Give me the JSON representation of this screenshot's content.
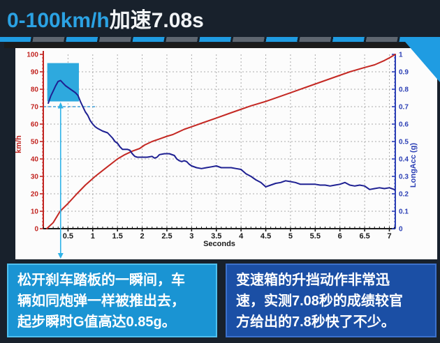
{
  "header": {
    "title_accent": "0-100km/h",
    "title_rest": "加速7.08s"
  },
  "chart_data": {
    "type": "line",
    "xlabel": "Seconds",
    "grid": true,
    "x_axis": {
      "min": 0,
      "max": 7.12,
      "minor_step": 0.1,
      "major_ticks": [
        0.5,
        1,
        1.5,
        2,
        2.5,
        3,
        3.5,
        4,
        4.5,
        5,
        5.5,
        6,
        6.5,
        7
      ],
      "major_labels": [
        "0.5",
        "1",
        "1.5",
        "2",
        "2.5",
        "3",
        "3.5",
        "4",
        "4.5",
        "5",
        "5.5",
        "6",
        "6.5",
        "7"
      ],
      "color": "#1a1a1a"
    },
    "left_axis": {
      "label": "km/h",
      "min": 0,
      "max": 100,
      "major_step": 10,
      "minor_step": 2,
      "tick_labels": [
        "0",
        "10",
        "20",
        "30",
        "40",
        "50",
        "60",
        "70",
        "80",
        "90",
        "100"
      ],
      "color": "#c22521"
    },
    "right_axis": {
      "label": "LongAcc (g)",
      "min": 0,
      "max": 1,
      "major_step": 0.1,
      "minor_step": 0.02,
      "tick_labels": [
        "0",
        "0.1",
        "0.2",
        "0.3",
        "0.4",
        "0.5",
        "0.6",
        "0.7",
        "0.8",
        "0.9",
        "1"
      ],
      "color": "#2b3fb5"
    },
    "series": [
      {
        "name": "speed_kmh",
        "axis": "left",
        "color": "#c42823",
        "points": [
          [
            0.07,
            0
          ],
          [
            0.2,
            3.5
          ],
          [
            0.34,
            10
          ],
          [
            0.5,
            14.5
          ],
          [
            0.68,
            20
          ],
          [
            0.85,
            25
          ],
          [
            1.05,
            30
          ],
          [
            1.25,
            34.5
          ],
          [
            1.5,
            40
          ],
          [
            1.65,
            42.5
          ],
          [
            1.8,
            44.5
          ],
          [
            1.95,
            46
          ],
          [
            2.05,
            48
          ],
          [
            2.2,
            50
          ],
          [
            2.35,
            51.5
          ],
          [
            2.5,
            53
          ],
          [
            2.62,
            54
          ],
          [
            2.85,
            57
          ],
          [
            3.0,
            58.5
          ],
          [
            3.25,
            61
          ],
          [
            3.5,
            63.5
          ],
          [
            3.75,
            66
          ],
          [
            3.95,
            68
          ],
          [
            4.2,
            70.5
          ],
          [
            4.5,
            73
          ],
          [
            4.75,
            75.5
          ],
          [
            5.05,
            78.5
          ],
          [
            5.3,
            81
          ],
          [
            5.6,
            84
          ],
          [
            5.9,
            87
          ],
          [
            6.2,
            90
          ],
          [
            6.5,
            92.5
          ],
          [
            6.7,
            94
          ],
          [
            6.9,
            96.5
          ],
          [
            7.0,
            98
          ],
          [
            7.12,
            100
          ]
        ]
      },
      {
        "name": "long_acc_g",
        "axis": "right",
        "color": "#1e2092",
        "points": [
          [
            0.1,
            0.72
          ],
          [
            0.15,
            0.76
          ],
          [
            0.2,
            0.79
          ],
          [
            0.25,
            0.82
          ],
          [
            0.3,
            0.845
          ],
          [
            0.35,
            0.85
          ],
          [
            0.4,
            0.835
          ],
          [
            0.45,
            0.82
          ],
          [
            0.5,
            0.81
          ],
          [
            0.55,
            0.8
          ],
          [
            0.6,
            0.79
          ],
          [
            0.65,
            0.78
          ],
          [
            0.7,
            0.765
          ],
          [
            0.75,
            0.73
          ],
          [
            0.8,
            0.7
          ],
          [
            0.85,
            0.67
          ],
          [
            0.9,
            0.65
          ],
          [
            0.95,
            0.62
          ],
          [
            1.0,
            0.6
          ],
          [
            1.05,
            0.585
          ],
          [
            1.1,
            0.575
          ],
          [
            1.2,
            0.56
          ],
          [
            1.3,
            0.55
          ],
          [
            1.4,
            0.52
          ],
          [
            1.45,
            0.5
          ],
          [
            1.5,
            0.49
          ],
          [
            1.55,
            0.47
          ],
          [
            1.6,
            0.455
          ],
          [
            1.7,
            0.455
          ],
          [
            1.75,
            0.45
          ],
          [
            1.8,
            0.43
          ],
          [
            1.85,
            0.415
          ],
          [
            1.9,
            0.41
          ],
          [
            2.0,
            0.41
          ],
          [
            2.1,
            0.41
          ],
          [
            2.2,
            0.415
          ],
          [
            2.25,
            0.405
          ],
          [
            2.3,
            0.41
          ],
          [
            2.35,
            0.425
          ],
          [
            2.45,
            0.43
          ],
          [
            2.55,
            0.43
          ],
          [
            2.65,
            0.42
          ],
          [
            2.7,
            0.4
          ],
          [
            2.75,
            0.39
          ],
          [
            2.8,
            0.385
          ],
          [
            2.85,
            0.39
          ],
          [
            2.9,
            0.385
          ],
          [
            2.95,
            0.37
          ],
          [
            3.0,
            0.36
          ],
          [
            3.1,
            0.35
          ],
          [
            3.2,
            0.345
          ],
          [
            3.3,
            0.35
          ],
          [
            3.4,
            0.355
          ],
          [
            3.5,
            0.36
          ],
          [
            3.6,
            0.35
          ],
          [
            3.7,
            0.35
          ],
          [
            3.8,
            0.35
          ],
          [
            3.9,
            0.345
          ],
          [
            4.0,
            0.34
          ],
          [
            4.1,
            0.315
          ],
          [
            4.2,
            0.3
          ],
          [
            4.3,
            0.28
          ],
          [
            4.4,
            0.265
          ],
          [
            4.5,
            0.24
          ],
          [
            4.6,
            0.25
          ],
          [
            4.7,
            0.26
          ],
          [
            4.8,
            0.265
          ],
          [
            4.9,
            0.275
          ],
          [
            5.0,
            0.27
          ],
          [
            5.1,
            0.265
          ],
          [
            5.2,
            0.255
          ],
          [
            5.35,
            0.255
          ],
          [
            5.5,
            0.255
          ],
          [
            5.6,
            0.25
          ],
          [
            5.7,
            0.25
          ],
          [
            5.8,
            0.245
          ],
          [
            5.9,
            0.25
          ],
          [
            6.0,
            0.255
          ],
          [
            6.1,
            0.265
          ],
          [
            6.2,
            0.25
          ],
          [
            6.3,
            0.245
          ],
          [
            6.4,
            0.25
          ],
          [
            6.5,
            0.245
          ],
          [
            6.6,
            0.225
          ],
          [
            6.7,
            0.23
          ],
          [
            6.8,
            0.235
          ],
          [
            6.9,
            0.23
          ],
          [
            7.0,
            0.235
          ],
          [
            7.1,
            0.225
          ]
        ]
      }
    ],
    "annotations": {
      "highlight_box": {
        "t_start": 0.08,
        "t_end": 0.72,
        "g_bottom": 0.73,
        "g_top": 0.95,
        "color": "#2ea9de"
      },
      "arrow": {
        "t": 0.35,
        "color": "#2fb3e8"
      },
      "ref_line": {
        "kmh": 70,
        "t_start": 0,
        "t_end": 1.05,
        "color": "#3f9fd8"
      },
      "peak_g_label": "0.85g"
    }
  },
  "notes": {
    "left_box": {
      "bg": "#1a94d3",
      "border": "#4fc0ef",
      "lines": [
        "松开刹车踏板的一瞬间，车",
        "辆如同炮弹一样被推出去，",
        "起步瞬时G值高达0.85g。"
      ]
    },
    "right_box": {
      "bg": "#1b4fa5",
      "border": "#3c71cc",
      "lines": [
        "变速箱的升挡动作非常迅",
        "速，实测7.08秒的成绩较官",
        "方给出的7.8秒快了不少。"
      ]
    }
  },
  "colors": {
    "page_bg": "#18212c",
    "title_accent": "#2ba2e3",
    "title_rest": "#f2f4f6",
    "stripe_blue": "#1f9ce2",
    "stripe_gray": "#5e6670",
    "panel_bg": "#fcfcfc",
    "panel_top_band": "#1b1b1b",
    "grid": "#aaaaaa"
  }
}
